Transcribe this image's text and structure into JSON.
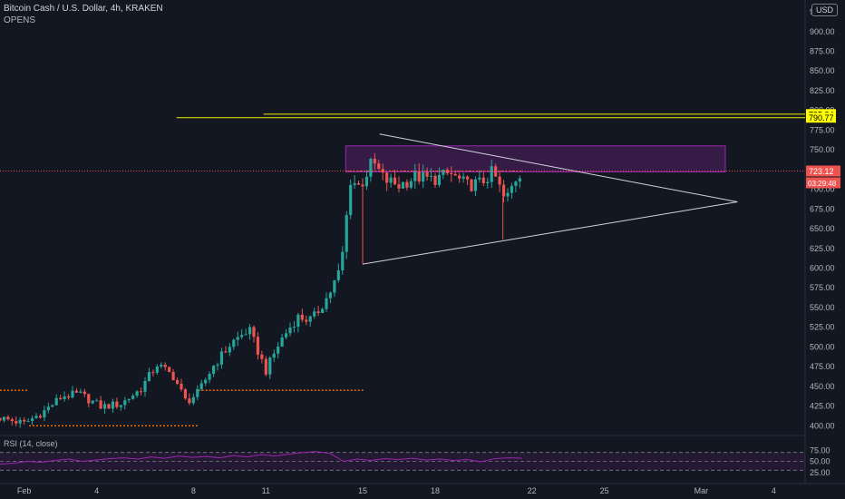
{
  "header": {
    "title": "Bitcoin Cash / U.S. Dollar, 4h, KRAKEN",
    "indicator": "OPENS",
    "currency": "USD"
  },
  "rsi": {
    "label": "RSI (14, close)",
    "ticks": [
      "75.00",
      "50.00",
      "25.00"
    ]
  },
  "colors": {
    "background": "#131722",
    "up": "#26a69a",
    "down": "#ef5350",
    "triangle": "#d1d4dc",
    "zone": "#9c27b0",
    "horizontal": "#d4d400",
    "price_line": "#ef5350",
    "opens": "#ff6d00",
    "rsi": "#9c27b0"
  },
  "chart_data": {
    "type": "candlestick",
    "y_range": [
      390,
      940
    ],
    "y_ticks": [
      925,
      900,
      875,
      850,
      825,
      800,
      775,
      750,
      725,
      700,
      675,
      650,
      625,
      600,
      575,
      550,
      525,
      500,
      475,
      450,
      425,
      400
    ],
    "y_tick_labels": [
      "925.00",
      "900.00",
      "875.00",
      "850.00",
      "825.00",
      "800.00",
      "775.00",
      "750.00",
      "725.00",
      "700.00",
      "675.00",
      "650.00",
      "625.00",
      "600.00",
      "575.00",
      "550.00",
      "525.00",
      "500.00",
      "475.00",
      "450.00",
      "425.00",
      "400.00"
    ],
    "x_range_days": [
      0,
      33.3
    ],
    "x_ticks": [
      {
        "day": 1,
        "label": "Feb"
      },
      {
        "day": 4,
        "label": "4"
      },
      {
        "day": 8,
        "label": "8"
      },
      {
        "day": 11,
        "label": "11"
      },
      {
        "day": 15,
        "label": "15"
      },
      {
        "day": 18,
        "label": "18"
      },
      {
        "day": 22,
        "label": "22"
      },
      {
        "day": 25,
        "label": "25"
      },
      {
        "day": 29,
        "label": "Mar"
      },
      {
        "day": 32,
        "label": "4"
      }
    ],
    "close_trend": [
      [
        0,
        410
      ],
      [
        1.0,
        403
      ],
      [
        1.8,
        418
      ],
      [
        2.6,
        438
      ],
      [
        3.3,
        440
      ],
      [
        4.2,
        424
      ],
      [
        5.0,
        428
      ],
      [
        5.8,
        446
      ],
      [
        6.5,
        478
      ],
      [
        7.2,
        462
      ],
      [
        7.7,
        430
      ],
      [
        8.2,
        442
      ],
      [
        8.8,
        475
      ],
      [
        9.6,
        506
      ],
      [
        10.3,
        522
      ],
      [
        11.0,
        470
      ],
      [
        11.6,
        508
      ],
      [
        12.3,
        538
      ],
      [
        12.9,
        534
      ],
      [
        13.6,
        566
      ],
      [
        14.1,
        600
      ],
      [
        14.5,
        712
      ],
      [
        14.9,
        703
      ],
      [
        15.4,
        735
      ],
      [
        15.9,
        712
      ],
      [
        16.5,
        705
      ],
      [
        17.2,
        716
      ],
      [
        17.9,
        712
      ],
      [
        18.6,
        720
      ],
      [
        19.3,
        705
      ],
      [
        19.9,
        708
      ],
      [
        20.4,
        722
      ],
      [
        20.9,
        684
      ],
      [
        21.3,
        712
      ],
      [
        21.6,
        723.12
      ]
    ],
    "last_price": {
      "value": 723.12,
      "label": "723.12",
      "countdown": "03:29:48"
    },
    "horizontal_levels": [
      {
        "value": 795.24,
        "label": "795.24",
        "from_day": 10.9
      },
      {
        "value": 790.77,
        "label": "790.77",
        "from_day": 7.3
      }
    ],
    "opens_lines": [
      {
        "value": 445,
        "from_day": 0,
        "to_day": 1.2
      },
      {
        "value": 400,
        "from_day": 1.2,
        "to_day": 8.2
      },
      {
        "value": 445,
        "from_day": 8.2,
        "to_day": 15.1
      },
      {
        "value": 723,
        "from_day": 14.3,
        "to_day": 21.6
      }
    ],
    "zone": {
      "from_day": 14.3,
      "to_day": 30.0,
      "low": 722,
      "high": 755
    },
    "triangle": {
      "apex_top": [
        15.7,
        770
      ],
      "apex_bottom": [
        15.0,
        605
      ],
      "apex_right": [
        30.5,
        684
      ]
    },
    "rsi_values": [
      44,
      46,
      50,
      48,
      52,
      55,
      50,
      53,
      56,
      58,
      55,
      60,
      57,
      62,
      59,
      61,
      58,
      63,
      60,
      65,
      62,
      66,
      70,
      72,
      68,
      50,
      55,
      52,
      56,
      54,
      57,
      53,
      55,
      52,
      54,
      49,
      56,
      58,
      57
    ],
    "rsi_x_range_days": [
      0,
      21.6
    ],
    "rsi_levels": [
      70,
      50,
      30
    ]
  }
}
